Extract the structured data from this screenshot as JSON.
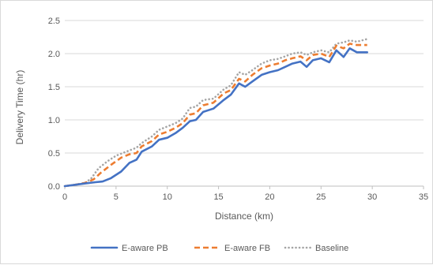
{
  "chart_data": {
    "type": "line",
    "title": "",
    "xlabel": "Distance (km)",
    "ylabel": "Delivery Time (hr)",
    "xlim": [
      0,
      35
    ],
    "ylim": [
      0,
      2.5
    ],
    "x_ticks": [
      "0",
      "5",
      "10",
      "15",
      "20",
      "25",
      "30",
      "35"
    ],
    "y_ticks": [
      "0.0",
      "0.5",
      "1.0",
      "1.5",
      "2.0",
      "2.5"
    ],
    "grid": "horizontal",
    "legend_position": "bottom",
    "series": [
      {
        "name": "E-aware PB",
        "color": "#4472C4",
        "dash": "solid",
        "points": [
          [
            0,
            0
          ],
          [
            1,
            0.02
          ],
          [
            2,
            0.04
          ],
          [
            3,
            0.06
          ],
          [
            3.7,
            0.07
          ],
          [
            4.5,
            0.12
          ],
          [
            5.5,
            0.22
          ],
          [
            6.3,
            0.35
          ],
          [
            7,
            0.4
          ],
          [
            7.5,
            0.52
          ],
          [
            8.5,
            0.6
          ],
          [
            9.2,
            0.7
          ],
          [
            10,
            0.73
          ],
          [
            10.8,
            0.8
          ],
          [
            11.5,
            0.88
          ],
          [
            12.2,
            0.98
          ],
          [
            12.8,
            1.0
          ],
          [
            13.5,
            1.12
          ],
          [
            14.5,
            1.17
          ],
          [
            15.5,
            1.3
          ],
          [
            16.2,
            1.38
          ],
          [
            17,
            1.55
          ],
          [
            17.6,
            1.5
          ],
          [
            18.3,
            1.58
          ],
          [
            19.2,
            1.68
          ],
          [
            20,
            1.72
          ],
          [
            20.8,
            1.75
          ],
          [
            21.5,
            1.8
          ],
          [
            22.2,
            1.85
          ],
          [
            23,
            1.88
          ],
          [
            23.6,
            1.8
          ],
          [
            24.2,
            1.9
          ],
          [
            25,
            1.93
          ],
          [
            25.8,
            1.87
          ],
          [
            26.5,
            2.05
          ],
          [
            27.2,
            1.95
          ],
          [
            27.8,
            2.08
          ],
          [
            28.5,
            2.02
          ],
          [
            29.5,
            2.02
          ]
        ]
      },
      {
        "name": "E-aware FB",
        "color": "#ED7D31",
        "dash": "dashed",
        "points": [
          [
            0,
            0
          ],
          [
            1,
            0.02
          ],
          [
            2,
            0.05
          ],
          [
            2.8,
            0.1
          ],
          [
            3.5,
            0.2
          ],
          [
            4.5,
            0.32
          ],
          [
            5.5,
            0.43
          ],
          [
            6.3,
            0.48
          ],
          [
            7,
            0.5
          ],
          [
            7.5,
            0.6
          ],
          [
            8.5,
            0.68
          ],
          [
            9.2,
            0.78
          ],
          [
            10,
            0.82
          ],
          [
            10.8,
            0.88
          ],
          [
            11.5,
            0.95
          ],
          [
            12.2,
            1.08
          ],
          [
            12.8,
            1.1
          ],
          [
            13.5,
            1.22
          ],
          [
            14.5,
            1.26
          ],
          [
            15.5,
            1.4
          ],
          [
            16.2,
            1.45
          ],
          [
            17,
            1.62
          ],
          [
            17.6,
            1.58
          ],
          [
            18.3,
            1.68
          ],
          [
            19.2,
            1.78
          ],
          [
            20,
            1.82
          ],
          [
            20.8,
            1.85
          ],
          [
            21.5,
            1.9
          ],
          [
            22.2,
            1.93
          ],
          [
            23,
            1.96
          ],
          [
            23.6,
            1.9
          ],
          [
            24.2,
            1.98
          ],
          [
            25,
            2.0
          ],
          [
            25.8,
            1.95
          ],
          [
            26.5,
            2.12
          ],
          [
            27.2,
            2.08
          ],
          [
            27.8,
            2.15
          ],
          [
            28.5,
            2.13
          ],
          [
            29.5,
            2.13
          ]
        ]
      },
      {
        "name": "Baseline",
        "color": "#A5A5A5",
        "dash": "dotted",
        "points": [
          [
            0,
            0
          ],
          [
            1,
            0.02
          ],
          [
            2,
            0.05
          ],
          [
            2.6,
            0.12
          ],
          [
            3.3,
            0.27
          ],
          [
            4.2,
            0.38
          ],
          [
            5,
            0.46
          ],
          [
            6,
            0.52
          ],
          [
            7,
            0.58
          ],
          [
            7.5,
            0.65
          ],
          [
            8.5,
            0.75
          ],
          [
            9.2,
            0.85
          ],
          [
            10,
            0.9
          ],
          [
            10.8,
            0.95
          ],
          [
            11.5,
            1.02
          ],
          [
            12.2,
            1.18
          ],
          [
            12.8,
            1.2
          ],
          [
            13.5,
            1.3
          ],
          [
            14.5,
            1.32
          ],
          [
            15.5,
            1.46
          ],
          [
            16.2,
            1.52
          ],
          [
            17,
            1.72
          ],
          [
            17.6,
            1.68
          ],
          [
            18.3,
            1.75
          ],
          [
            19.2,
            1.85
          ],
          [
            20,
            1.9
          ],
          [
            20.8,
            1.92
          ],
          [
            21.5,
            1.96
          ],
          [
            22.2,
            2.0
          ],
          [
            23,
            2.02
          ],
          [
            23.6,
            1.98
          ],
          [
            24.2,
            2.02
          ],
          [
            25,
            2.05
          ],
          [
            25.8,
            2.02
          ],
          [
            26.5,
            2.15
          ],
          [
            27.2,
            2.17
          ],
          [
            27.8,
            2.2
          ],
          [
            28.5,
            2.18
          ],
          [
            29.5,
            2.22
          ]
        ]
      }
    ]
  }
}
